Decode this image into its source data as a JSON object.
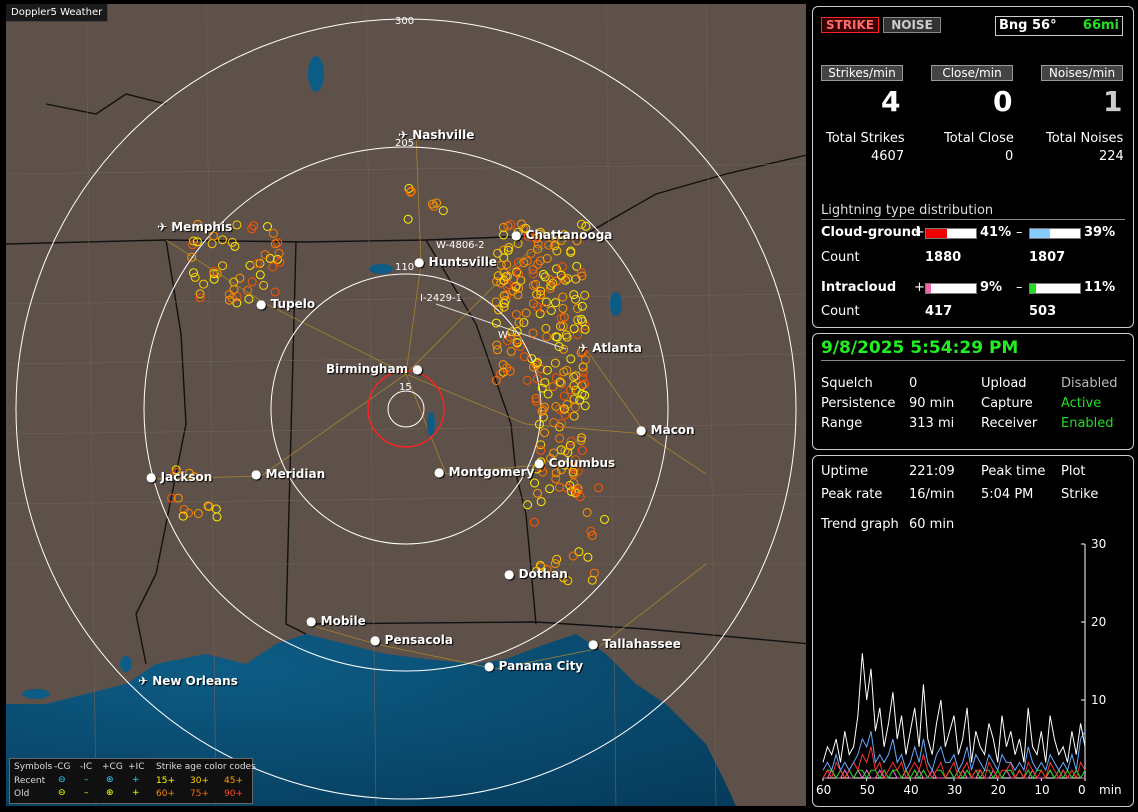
{
  "map": {
    "title": "Doppler5 Weather",
    "rings": [
      "300",
      "205",
      "110",
      "15"
    ],
    "cities": [
      {
        "name": "Nashville",
        "kind": "airport"
      },
      {
        "name": "Memphis",
        "kind": "airport"
      },
      {
        "name": "Chattanooga",
        "kind": "dot"
      },
      {
        "name": "Huntsville",
        "kind": "dot"
      },
      {
        "name": "Tupelo",
        "kind": "dot"
      },
      {
        "name": "Birmingham",
        "kind": "dot"
      },
      {
        "name": "Atlanta",
        "kind": "airport"
      },
      {
        "name": "Macon",
        "kind": "dot"
      },
      {
        "name": "Jackson",
        "kind": "dot"
      },
      {
        "name": "Meridian",
        "kind": "dot"
      },
      {
        "name": "Montgomery",
        "kind": "dot"
      },
      {
        "name": "Columbus",
        "kind": "dot"
      },
      {
        "name": "Dothan",
        "kind": "dot"
      },
      {
        "name": "Mobile",
        "kind": "dot"
      },
      {
        "name": "Pensacola",
        "kind": "dot"
      },
      {
        "name": "Tallahassee",
        "kind": "dot"
      },
      {
        "name": "Panama City",
        "kind": "dot"
      },
      {
        "name": "New Orleans",
        "kind": "airport"
      }
    ],
    "road_labels": [
      "W-4806-2",
      "I-2429-1",
      "W-"
    ],
    "legend": {
      "symbols": "Symbols",
      "cols": [
        "-CG",
        "-IC",
        "+CG",
        "+IC"
      ],
      "recent": "Recent",
      "old": "Old",
      "age_title": "Strike age color codes",
      "ages": [
        "15+",
        "30+",
        "45+",
        "60+",
        "75+",
        "90+"
      ]
    }
  },
  "top": {
    "strike_btn": "STRIKE",
    "noise_btn": "NOISE",
    "bearing": "Bng 56°",
    "distance": "66mi",
    "strikes_min_label": "Strikes/min",
    "close_min_label": "Close/min",
    "noises_min_label": "Noises/min",
    "strikes_min": "4",
    "close_min": "0",
    "noises_min": "1",
    "total_strikes_label": "Total Strikes",
    "total_close_label": "Total Close",
    "total_noises_label": "Total Noises",
    "total_strikes": "4607",
    "total_close": "0",
    "total_noises": "224",
    "dist_title": "Lightning type distribution",
    "cg_label": "Cloud-ground",
    "ic_label": "Intracloud",
    "count_label": "Count",
    "plus": "+",
    "minus": "–",
    "cg_pos_pct": "41%",
    "cg_neg_pct": "39%",
    "ic_pos_pct": "9%",
    "ic_neg_pct": "11%",
    "cg_pos_count": "1880",
    "cg_neg_count": "1807",
    "ic_pos_count": "417",
    "ic_neg_count": "503",
    "cg_pos_frac": 0.41,
    "cg_neg_frac": 0.39,
    "ic_pos_frac": 0.09,
    "ic_neg_frac": 0.11
  },
  "status": {
    "datetime": "9/8/2025 5:54:29 PM",
    "squelch_label": "Squelch",
    "squelch": "0",
    "persistence_label": "Persistence",
    "persistence": "90 min",
    "range_label": "Range",
    "range": "313 mi",
    "upload_label": "Upload",
    "upload": "Disabled",
    "capture_label": "Capture",
    "capture": "Active",
    "receiver_label": "Receiver",
    "receiver": "Enabled"
  },
  "stats": {
    "uptime_label": "Uptime",
    "uptime": "221:09",
    "peak_time_label": "Peak time",
    "peak_time": "5:04 PM",
    "plot_label": "Plot",
    "plot": "Strike",
    "peak_rate_label": "Peak rate",
    "peak_rate": "16/min",
    "trend_label": "Trend graph",
    "trend": "60 min"
  },
  "chart_data": {
    "type": "line",
    "x_ticks": [
      "60",
      "50",
      "40",
      "30",
      "20",
      "10",
      "0"
    ],
    "x_unit": "min",
    "y_ticks": [
      "30",
      "20",
      "10"
    ],
    "ylim": [
      0,
      30
    ],
    "xlim": [
      60,
      0
    ],
    "x": [
      60,
      59,
      58,
      57,
      56,
      55,
      54,
      53,
      52,
      51,
      50,
      49,
      48,
      47,
      46,
      45,
      44,
      43,
      42,
      41,
      40,
      39,
      38,
      37,
      36,
      35,
      34,
      33,
      32,
      31,
      30,
      29,
      28,
      27,
      26,
      25,
      24,
      23,
      22,
      21,
      20,
      19,
      18,
      17,
      16,
      15,
      14,
      13,
      12,
      11,
      10,
      9,
      8,
      7,
      6,
      5,
      4,
      3,
      2,
      1,
      0
    ],
    "series": [
      {
        "color": "#ffffff",
        "values": [
          2,
          4,
          3,
          5,
          2,
          6,
          3,
          4,
          8,
          16,
          10,
          14,
          6,
          9,
          4,
          7,
          11,
          5,
          8,
          3,
          6,
          9,
          4,
          12,
          5,
          3,
          7,
          10,
          4,
          6,
          8,
          3,
          5,
          9,
          2,
          6,
          4,
          3,
          7,
          5,
          2,
          8,
          4,
          6,
          3,
          5,
          2,
          9,
          4,
          3,
          6,
          2,
          8,
          5,
          3,
          4,
          2,
          6,
          3,
          7,
          4
        ]
      },
      {
        "color": "#66aaff",
        "values": [
          1,
          2,
          1,
          3,
          1,
          2,
          1,
          2,
          3,
          5,
          4,
          6,
          2,
          3,
          2,
          3,
          5,
          2,
          3,
          1,
          2,
          4,
          2,
          5,
          2,
          1,
          3,
          4,
          2,
          2,
          3,
          1,
          2,
          4,
          1,
          3,
          2,
          1,
          3,
          2,
          1,
          3,
          2,
          2,
          1,
          2,
          1,
          4,
          2,
          1,
          2,
          1,
          3,
          2,
          1,
          2,
          1,
          3,
          1,
          5,
          6
        ]
      },
      {
        "color": "#ff3333",
        "values": [
          0,
          1,
          0,
          2,
          1,
          0,
          1,
          2,
          1,
          3,
          2,
          4,
          1,
          2,
          0,
          1,
          2,
          1,
          2,
          0,
          1,
          2,
          1,
          3,
          1,
          0,
          1,
          2,
          0,
          1,
          2,
          0,
          1,
          2,
          0,
          1,
          1,
          0,
          2,
          1,
          0,
          1,
          1,
          2,
          0,
          1,
          0,
          2,
          1,
          0,
          1,
          0,
          2,
          1,
          0,
          1,
          0,
          1,
          0,
          2,
          1
        ]
      },
      {
        "color": "#22dd22",
        "values": [
          0,
          1,
          1,
          0,
          1,
          0,
          1,
          0,
          1,
          1,
          0,
          1,
          1,
          0,
          1,
          0,
          1,
          1,
          0,
          1,
          0,
          1,
          0,
          1,
          0,
          0,
          1,
          1,
          0,
          1,
          0,
          1,
          0,
          1,
          0,
          1,
          0,
          1,
          1,
          0,
          1,
          0,
          1,
          1,
          0,
          1,
          0,
          1,
          0,
          1,
          1,
          0,
          1,
          0,
          1,
          0,
          1,
          0,
          1,
          0,
          1
        ]
      },
      {
        "color": "#ff66cc",
        "values": [
          0,
          0,
          1,
          0,
          0,
          1,
          0,
          0,
          1,
          0,
          1,
          0,
          0,
          1,
          0,
          0,
          1,
          0,
          0,
          1,
          0,
          0,
          1,
          0,
          0,
          1,
          0,
          0,
          0,
          1,
          0,
          0,
          1,
          0,
          0,
          0,
          1,
          0,
          0,
          1,
          0,
          0,
          1,
          0,
          0,
          1,
          0,
          0,
          1,
          0,
          0,
          0,
          1,
          0,
          0,
          1,
          0,
          0,
          1,
          0,
          0
        ]
      }
    ]
  }
}
